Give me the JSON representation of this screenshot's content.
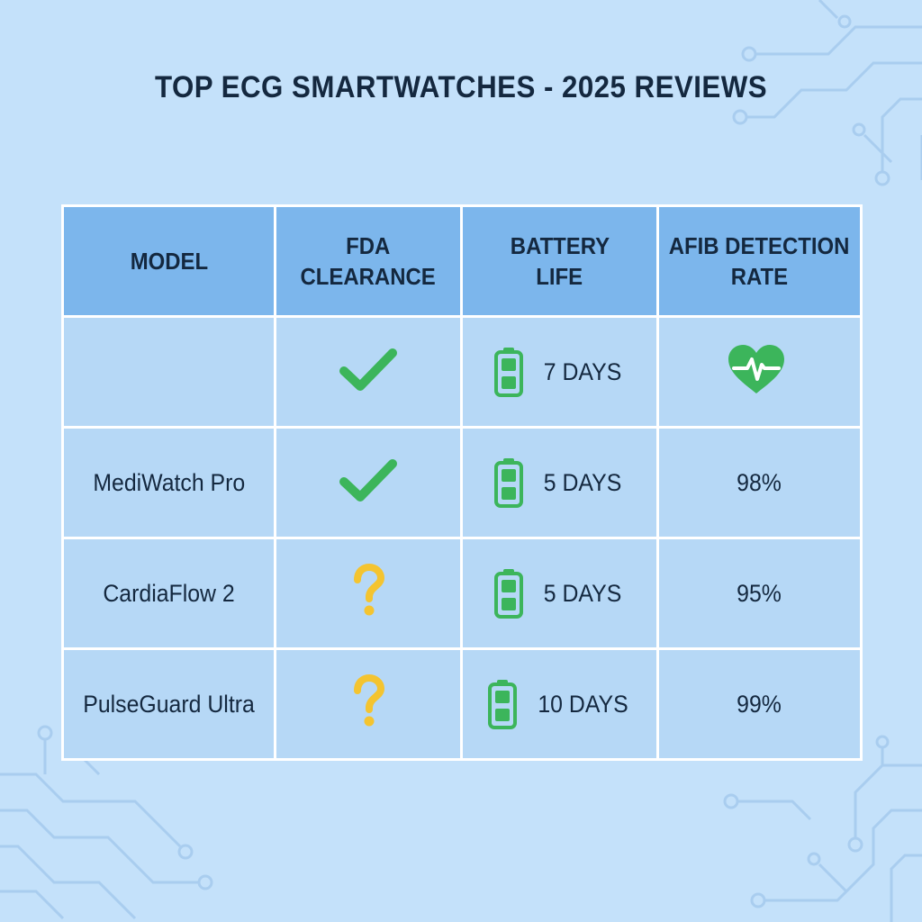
{
  "title": "TOP ECG SMARTWATCHES - 2025 REVIEWS",
  "colors": {
    "background": "#c4e1fa",
    "header_bg": "#7cb6ec",
    "cell_bg": "#b6d8f6",
    "check_green": "#3cb55b",
    "question_yellow": "#f4c430",
    "battery_green": "#3cb55b",
    "heart_green": "#3cb55b"
  },
  "table": {
    "headers": {
      "model": "MODEL",
      "fda_line1": "FDA",
      "fda_line2": "CLEARANCE",
      "battery_line1": "BATTERY",
      "battery_line2": "LIFE",
      "afib_line1": "AFIB DETECTION",
      "afib_line2": "RATE"
    },
    "rows": [
      {
        "model": "",
        "fda_icon": "checkmark-icon",
        "battery": "7 DAYS",
        "battery_icon": "battery-icon",
        "afib": "",
        "afib_icon": "heart-pulse-icon"
      },
      {
        "model": "MediWatch Pro",
        "fda_icon": "checkmark-icon",
        "battery": "5 DAYS",
        "battery_icon": "battery-icon",
        "afib": "98%"
      },
      {
        "model": "CardiaFlow 2",
        "fda_icon": "question-mark-icon",
        "battery": "5 DAYS",
        "battery_icon": "battery-icon",
        "afib": "95%"
      },
      {
        "model": "PulseGuard Ultra",
        "fda_icon": "question-mark-icon",
        "battery": "10 DAYS",
        "battery_icon": "battery-icon",
        "afib": "99%"
      }
    ]
  }
}
